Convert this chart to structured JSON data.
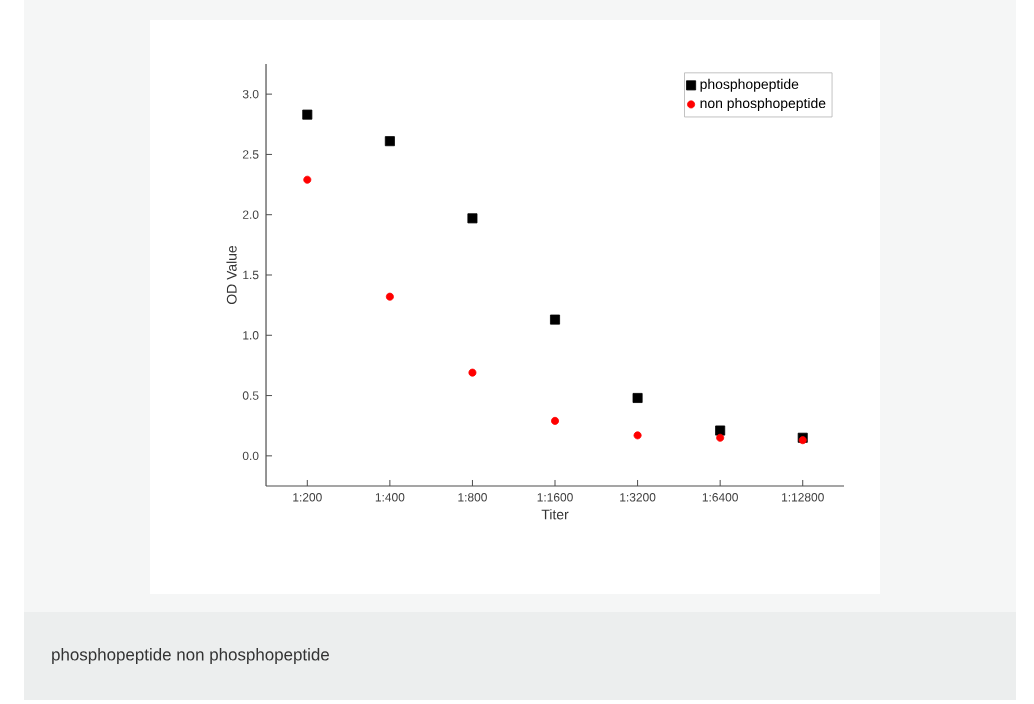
{
  "chart_data": {
    "type": "scatter",
    "xlabel": "Titer",
    "ylabel": "OD Value",
    "categories": [
      "1:200",
      "1:400",
      "1:800",
      "1:1600",
      "1:3200",
      "1:6400",
      "1:12800"
    ],
    "series": [
      {
        "name": "phosphopeptide",
        "color": "#000000",
        "marker": "square",
        "values": [
          2.83,
          2.61,
          1.97,
          1.13,
          0.48,
          0.21,
          0.15
        ]
      },
      {
        "name": "non phosphopeptide",
        "color": "#ff0000",
        "marker": "circle",
        "values": [
          2.29,
          1.32,
          0.69,
          0.29,
          0.17,
          0.15,
          0.13
        ]
      }
    ],
    "ylim": [
      -0.25,
      3.25
    ],
    "yticks": [
      {
        "value": 0,
        "label": "0.0"
      },
      {
        "value": 0.5,
        "label": "0.5"
      },
      {
        "value": 1,
        "label": "1.0"
      },
      {
        "value": 1.5,
        "label": "1.5"
      },
      {
        "value": 2,
        "label": "2.0"
      },
      {
        "value": 2.5,
        "label": "2.5"
      },
      {
        "value": 3,
        "label": "3.0"
      }
    ],
    "legend": "top right",
    "annotations": [
      "phosphopeptide non phosphopeptide"
    ]
  }
}
